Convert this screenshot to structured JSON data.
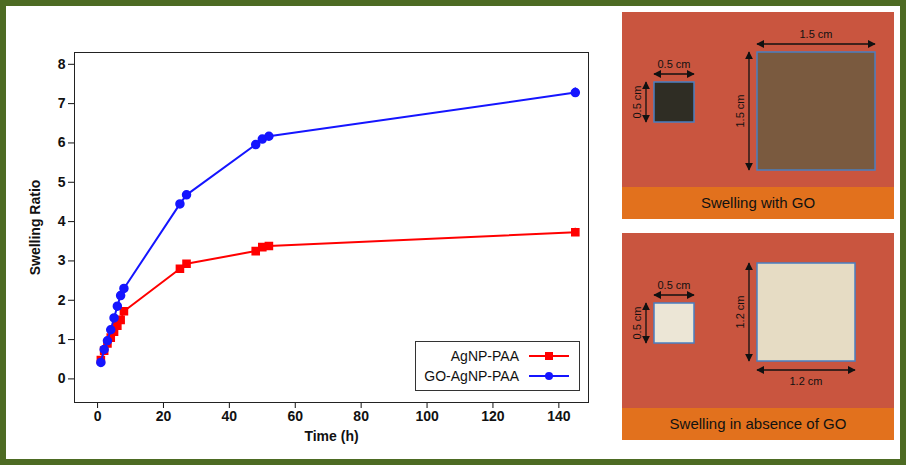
{
  "chart_data": {
    "type": "line",
    "x_label": "Time (h)",
    "y_label": "Swelling Ratio",
    "xlim": [
      -7,
      149
    ],
    "xticks": [
      0,
      20,
      40,
      60,
      80,
      100,
      120,
      140
    ],
    "ylim": [
      -0.6,
      8.3
    ],
    "yticks": [
      0,
      1,
      2,
      3,
      4,
      5,
      6,
      7,
      8
    ],
    "legend": "bottom-right",
    "x": [
      1,
      2,
      3,
      4,
      5,
      6,
      7,
      8,
      25,
      27,
      48,
      50,
      52,
      145
    ],
    "series": [
      {
        "name": "AgNP-PAA",
        "color": "#ff0000",
        "marker": "square",
        "line_style": "solid",
        "values": [
          0.48,
          0.72,
          0.9,
          1.05,
          1.2,
          1.35,
          1.5,
          1.72,
          2.8,
          2.93,
          3.25,
          3.35,
          3.38,
          3.73
        ],
        "errors": [
          0.03,
          0.03,
          0.03,
          0.03,
          0.03,
          0.03,
          0.03,
          0.03,
          0.04,
          0.04,
          0.05,
          0.05,
          0.05,
          0.1
        ]
      },
      {
        "name": "GO-AgNP-PAA",
        "color": "#1515ff",
        "marker": "circle",
        "line_style": "solid",
        "values": [
          0.42,
          0.75,
          0.97,
          1.25,
          1.55,
          1.85,
          2.12,
          2.3,
          4.45,
          4.68,
          5.96,
          6.1,
          6.17,
          7.28
        ],
        "errors": [
          0.03,
          0.03,
          0.03,
          0.03,
          0.03,
          0.03,
          0.03,
          0.03,
          0.04,
          0.04,
          0.05,
          0.05,
          0.05,
          0.12
        ]
      }
    ]
  },
  "photo_panels": [
    {
      "caption": "Swelling with GO",
      "before": {
        "width": "0.5 cm",
        "height": "0.5 cm"
      },
      "after": {
        "width": "1.5 cm",
        "height": "1.5 cm"
      }
    },
    {
      "caption": "Swelling in absence of GO",
      "before": {
        "width": "0.5 cm",
        "height": "0.5 cm"
      },
      "after": {
        "width": "1.2 cm",
        "height": "1.2 cm"
      }
    }
  ]
}
